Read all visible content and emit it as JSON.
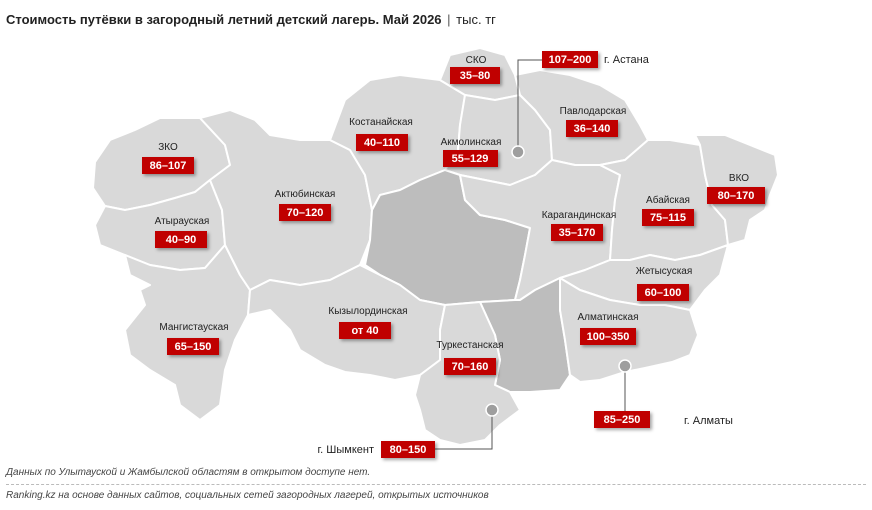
{
  "title": {
    "main": "Стоимость путёвки в загородный летний детский лагерь. Май 2026",
    "separator": "|",
    "unit": "тыс. тг"
  },
  "colors": {
    "label_bg": "#c00000",
    "region_fill": "#d9d9d9",
    "gap_region_fill": "#bdbdbd",
    "border": "#ffffff"
  },
  "regions": {
    "sko": {
      "name": "СКО",
      "value": "35–80"
    },
    "kostanay": {
      "name": "Костанайская",
      "value": "40–110"
    },
    "akmola": {
      "name": "Акмолинская",
      "value": "55–129"
    },
    "pavlodar": {
      "name": "Павлодарская",
      "value": "36–140"
    },
    "zko": {
      "name": "ЗКО",
      "value": "86–107"
    },
    "aktobe": {
      "name": "Актюбинская",
      "value": "70–120"
    },
    "atyrau": {
      "name": "Атырауская",
      "value": "40–90"
    },
    "karaganda": {
      "name": "Карагандинская",
      "value": "35–170"
    },
    "abai": {
      "name": "Абайская",
      "value": "75–115"
    },
    "vko": {
      "name": "ВКО",
      "value": "80–170"
    },
    "zhetysu": {
      "name": "Жетысуская",
      "value": "60–100"
    },
    "mangystau": {
      "name": "Мангистауская",
      "value": "65–150"
    },
    "kyzylorda": {
      "name": "Кызылординская",
      "value": "от 40"
    },
    "almaty_obl": {
      "name": "Алматинская",
      "value": "100–350"
    },
    "turkestan": {
      "name": "Туркестанская",
      "value": "70–160"
    }
  },
  "cities": {
    "astana": {
      "name": "г. Астана",
      "value": "107–200"
    },
    "almaty": {
      "name": "г. Алматы",
      "value": "85–250"
    },
    "shymkent": {
      "name": "г. Шымкент",
      "value": "80–150"
    }
  },
  "notes": {
    "note1": "Данных по Улытауской и Жамбылской областям в открытом доступе нет.",
    "note2": "Ranking.kz на основе данных сайтов, социальных сетей загородных лагерей, открытых источников"
  }
}
